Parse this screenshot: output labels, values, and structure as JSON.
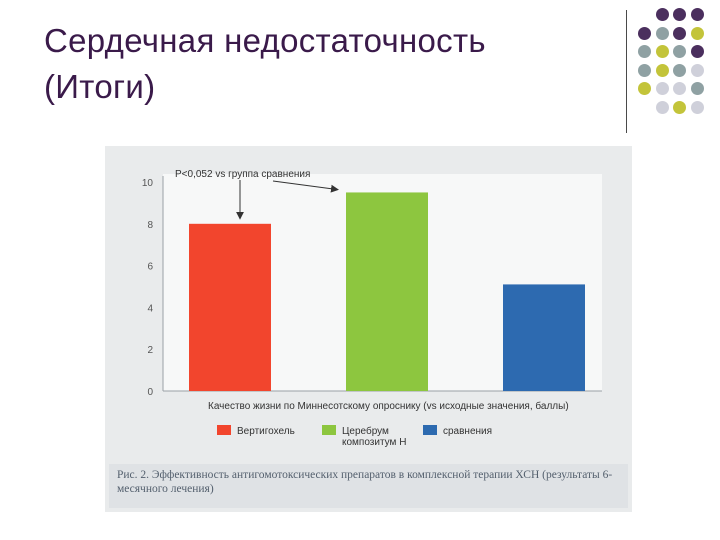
{
  "slide": {
    "title_line1": "Сердечная недостаточность",
    "title_line2": "(Итоги)"
  },
  "decor": {
    "dot_colors": [
      "#4b2f5e",
      "#8fa1a3",
      "#c3c43a",
      "#cfd0da"
    ],
    "rows": [
      [
        "#4b2f5e",
        "#4b2f5e",
        "#4b2f5e"
      ],
      [
        "#4b2f5e",
        "#8fa1a3",
        "#4b2f5e",
        "#c3c43a"
      ],
      [
        "#8fa1a3",
        "#c3c43a",
        "#8fa1a3",
        "#4b2f5e"
      ],
      [
        "#8fa1a3",
        "#c3c43a",
        "#8fa1a3",
        "#cfd0da"
      ],
      [
        "#c3c43a",
        "#cfd0da",
        "#cfd0da",
        "#8fa1a3"
      ],
      [
        "#cfd0da",
        "#c3c43a",
        "#cfd0da"
      ]
    ]
  },
  "chart_data": {
    "type": "bar",
    "categories": [
      "Вертигохель",
      "Церебрум композитум Н",
      "сравнения"
    ],
    "legend_labels": [
      "Вертигохель",
      "Церебрум\nкомпозитум Н",
      "сравнения"
    ],
    "values": [
      8.0,
      9.5,
      5.1
    ],
    "colors": [
      "#f2452d",
      "#8dc63f",
      "#2d6ab0"
    ],
    "yticks": [
      0,
      2,
      4,
      6,
      8,
      10
    ],
    "ylim": [
      0,
      10
    ],
    "xlabel": "Качество жизни по Миннесотскому опроснику (vs исходные значения, баллы)",
    "annotation": "P<0,052 vs группа сравнения",
    "caption": "Рис. 2. Эффективность антигомотоксических препаратов в комплексной терапии ХСН (результаты 6-месячного лечения)"
  }
}
